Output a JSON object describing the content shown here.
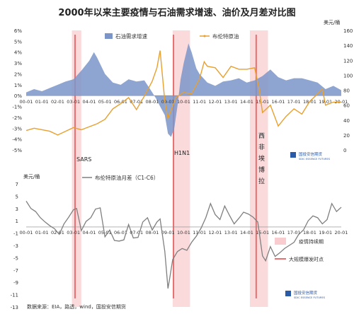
{
  "title": "2000年以来主要疫情与石油需求增速、油价及月差对比图",
  "source": "数据来源：EIA，路透，wind，国投安信期货",
  "logo": {
    "name": "国投安信期货",
    "subtitle": "SDIC ESSENCE FUTURES"
  },
  "colors": {
    "demand": "#7b95c9",
    "brent": "#e8a030",
    "spread": "#7f7f7f",
    "period": "#f9cdd0",
    "outbreak": "#e87070"
  },
  "chart_data": [
    {
      "type": "area",
      "title": "2000年以来主要疫情与石油需求增速、油价及月差对比图",
      "y_unit_right": "美元/桶",
      "x_ticks": [
        "00-01",
        "01-01",
        "02-01",
        "03-01",
        "04-01",
        "05-01",
        "06-01",
        "07-01",
        "08-01",
        "09-01",
        "10-01",
        "11-01",
        "12-01",
        "13-01",
        "14-01",
        "15-01",
        "16-01",
        "17-01",
        "18-01",
        "19-01",
        "20-01"
      ],
      "ylim_left": [
        -5,
        6
      ],
      "yticks_left": [
        "6%",
        "5%",
        "4%",
        "3%",
        "2%",
        "1%",
        "0%",
        "-1%",
        "-2%",
        "-3%",
        "-4%",
        "-5%"
      ],
      "ylim_right": [
        0,
        160
      ],
      "yticks_right": [
        "160",
        "140",
        "120",
        "100",
        "80",
        "60",
        "40",
        "20",
        "0"
      ],
      "series": [
        {
          "name": "石油需求增速",
          "type": "area",
          "axis": "left",
          "x": [
            2000.0,
            2000.5,
            2001.0,
            2001.5,
            2002.0,
            2002.5,
            2003.0,
            2003.5,
            2004.0,
            2004.3,
            2004.5,
            2005.0,
            2005.5,
            2006.0,
            2006.5,
            2007.0,
            2007.5,
            2008.0,
            2008.3,
            2008.5,
            2008.8,
            2009.0,
            2009.2,
            2009.4,
            2009.6,
            2009.8,
            2010.0,
            2010.3,
            2010.5,
            2010.8,
            2011.0,
            2011.5,
            2012.0,
            2012.5,
            2013.0,
            2013.5,
            2014.0,
            2014.5,
            2015.0,
            2015.5,
            2016.0,
            2016.5,
            2017.0,
            2017.5,
            2018.0,
            2018.5,
            2019.0,
            2019.5,
            2020.0
          ],
          "y": [
            0.3,
            0.6,
            0.4,
            0.7,
            1.0,
            1.3,
            1.5,
            2.3,
            3.2,
            4.0,
            3.5,
            2.0,
            1.2,
            1.0,
            1.5,
            1.3,
            1.4,
            0.3,
            -0.4,
            -1.0,
            -1.8,
            -3.5,
            -3.8,
            -3.0,
            -1.0,
            1.5,
            3.0,
            4.8,
            4.0,
            2.5,
            2.0,
            1.2,
            0.9,
            1.3,
            1.4,
            1.6,
            1.2,
            1.4,
            1.8,
            2.4,
            1.7,
            1.4,
            1.6,
            1.6,
            1.4,
            1.2,
            0.6,
            0.9,
            0.5
          ]
        },
        {
          "name": "布伦特原油",
          "type": "line",
          "axis": "right",
          "x": [
            2000.0,
            2000.5,
            2001.0,
            2001.5,
            2002.0,
            2002.5,
            2003.0,
            2003.5,
            2004.0,
            2004.5,
            2005.0,
            2005.5,
            2006.0,
            2006.5,
            2007.0,
            2007.5,
            2008.0,
            2008.3,
            2008.5,
            2008.8,
            2009.0,
            2009.5,
            2010.0,
            2010.5,
            2011.0,
            2011.3,
            2011.5,
            2012.0,
            2012.5,
            2013.0,
            2013.5,
            2014.0,
            2014.5,
            2014.8,
            2015.0,
            2015.5,
            2016.0,
            2016.5,
            2017.0,
            2017.5,
            2018.0,
            2018.5,
            2018.8,
            2019.0,
            2019.5,
            2020.0
          ],
          "y": [
            26,
            29,
            27,
            25,
            20,
            25,
            30,
            27,
            31,
            35,
            41,
            55,
            62,
            70,
            54,
            72,
            92,
            110,
            133,
            65,
            42,
            70,
            77,
            75,
            95,
            118,
            112,
            110,
            97,
            112,
            108,
            108,
            110,
            80,
            50,
            60,
            32,
            45,
            55,
            48,
            65,
            75,
            82,
            60,
            64,
            64
          ]
        }
      ],
      "annotations": [
        "SARS",
        "H1N1",
        "西非埃博拉"
      ]
    },
    {
      "type": "line",
      "title": "",
      "y_unit": "美元/桶",
      "x_ticks": [
        "00-01",
        "01-01",
        "02-01",
        "03-01",
        "04-01",
        "05-01",
        "06-01",
        "07-01",
        "08-01",
        "09-01",
        "10-01",
        "11-01",
        "12-01",
        "13-01",
        "14-01",
        "15-01",
        "16-01",
        "17-01",
        "18-01",
        "19-01",
        "20-01"
      ],
      "ylim": [
        -13,
        7
      ],
      "yticks": [
        "7",
        "5",
        "3",
        "1",
        "-1",
        "-3",
        "-5",
        "-7",
        "-9",
        "-11",
        "-13"
      ],
      "series": [
        {
          "name": "布伦特原油月差（C1-C6）",
          "x": [
            2000.0,
            2000.3,
            2000.6,
            2000.9,
            2001.2,
            2001.5,
            2001.8,
            2002.1,
            2002.4,
            2002.7,
            2003.0,
            2003.2,
            2003.5,
            2003.8,
            2004.1,
            2004.4,
            2004.7,
            2005.0,
            2005.3,
            2005.6,
            2005.9,
            2006.2,
            2006.5,
            2006.8,
            2007.1,
            2007.4,
            2007.7,
            2008.0,
            2008.3,
            2008.5,
            2008.8,
            2009.0,
            2009.1,
            2009.3,
            2009.6,
            2009.9,
            2010.2,
            2010.5,
            2010.8,
            2011.1,
            2011.4,
            2011.7,
            2012.0,
            2012.3,
            2012.6,
            2012.9,
            2013.2,
            2013.5,
            2013.8,
            2014.1,
            2014.4,
            2014.7,
            2015.0,
            2015.2,
            2015.5,
            2015.8,
            2016.1,
            2016.4,
            2016.7,
            2017.0,
            2017.3,
            2017.6,
            2017.9,
            2018.2,
            2018.5,
            2018.8,
            2019.1,
            2019.4,
            2019.7,
            2020.0
          ],
          "y": [
            4.2,
            3.0,
            2.5,
            1.5,
            0.8,
            0.2,
            -0.3,
            -1.2,
            0.5,
            1.6,
            2.8,
            3.0,
            -0.6,
            0.9,
            1.5,
            2.9,
            3.1,
            -1.6,
            -0.5,
            -2.2,
            -2.3,
            -2.1,
            0.4,
            -1.8,
            -1.7,
            0.8,
            1.5,
            -0.5,
            0.8,
            1.3,
            -4.0,
            -10.0,
            -8.5,
            -5.3,
            -4.0,
            -3.5,
            -3.8,
            -2.5,
            -1.5,
            -0.2,
            1.5,
            3.8,
            2.0,
            1.2,
            3.4,
            1.9,
            0.5,
            1.4,
            2.4,
            2.1,
            1.6,
            0.8,
            -4.7,
            -5.5,
            -3.2,
            -4.8,
            -4.2,
            -3.5,
            -3.0,
            -2.5,
            -1.2,
            -0.5,
            1.0,
            1.8,
            1.5,
            0.5,
            1.2,
            3.8,
            2.5,
            3.2
          ]
        }
      ],
      "annotations": [
        "疫情持续期",
        "大规模爆发时点"
      ]
    }
  ],
  "periods": [
    {
      "start": 2002.9,
      "end": 2003.5,
      "peak": 2003.1
    },
    {
      "start": 2009.3,
      "end": 2010.4,
      "peak": 2009.35
    },
    {
      "start": 2014.2,
      "end": 2015.35,
      "peak": 2014.6
    }
  ]
}
